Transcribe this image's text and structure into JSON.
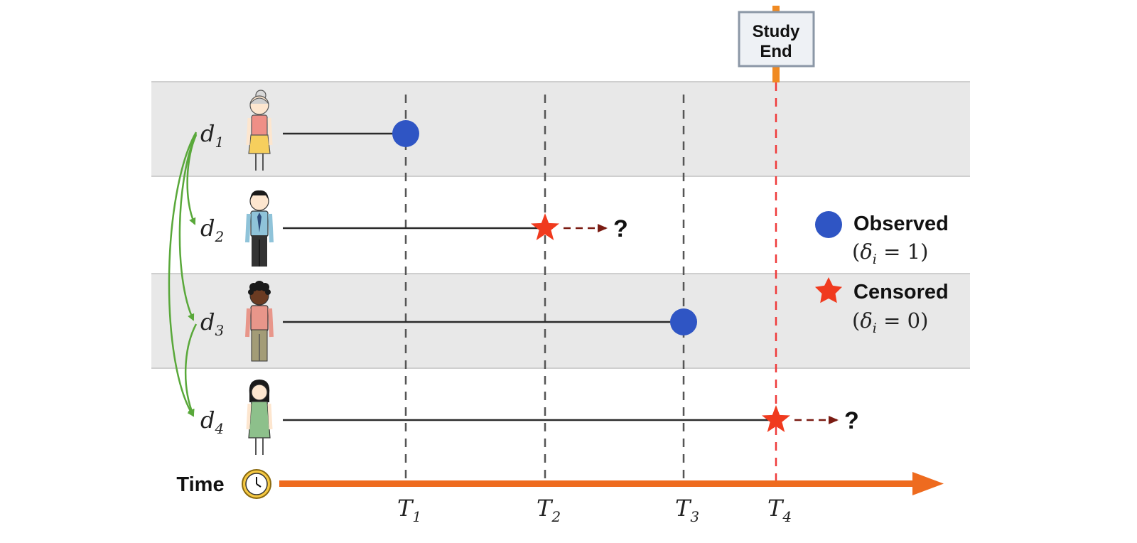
{
  "study_end": {
    "line1": "Study",
    "line2": "End"
  },
  "subjects": [
    {
      "base": "d",
      "sub": "1",
      "event": "observed",
      "end_tick": 0
    },
    {
      "base": "d",
      "sub": "2",
      "event": "censored",
      "end_tick": 1,
      "unknown_mark": "?"
    },
    {
      "base": "d",
      "sub": "3",
      "event": "observed",
      "end_tick": 2
    },
    {
      "base": "d",
      "sub": "4",
      "event": "censored",
      "end_tick": 3,
      "unknown_mark": "?"
    }
  ],
  "time_axis": {
    "label": "Time",
    "ticks": [
      {
        "base": "T",
        "sub": "1"
      },
      {
        "base": "T",
        "sub": "2"
      },
      {
        "base": "T",
        "sub": "3"
      },
      {
        "base": "T",
        "sub": "4"
      }
    ]
  },
  "legend": {
    "observed": {
      "label": "Observed",
      "open": "(",
      "var": "δ",
      "sub": "i",
      "eq": " = 1",
      "close": ")"
    },
    "censored": {
      "label": "Censored",
      "open": "(",
      "var": "δ",
      "sub": "i",
      "eq": " = 0",
      "close": ")"
    }
  },
  "colors": {
    "observed": "#2f55c4",
    "censored": "#f03a1e",
    "axis": "#ee6b1f",
    "arrow_green": "#59a83a",
    "band": "#e8e8e8",
    "dashed_arrow": "#7a1b12"
  }
}
